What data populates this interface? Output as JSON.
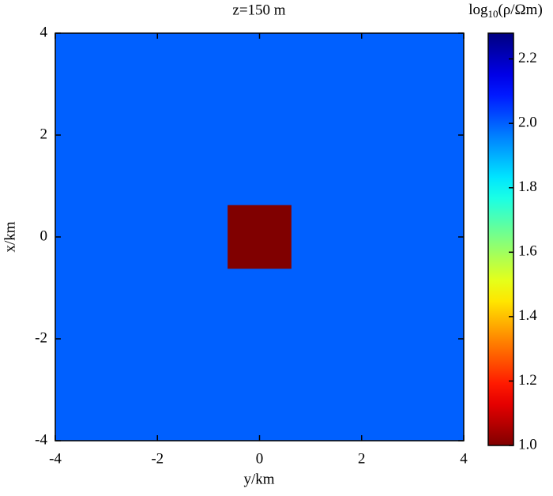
{
  "chart_data": {
    "type": "heatmap",
    "title": "z=150 m",
    "x_label": "y/km",
    "y_label": "x/km",
    "xlim": [
      -4,
      4
    ],
    "xticks": [
      -4,
      -2,
      0,
      2,
      4
    ],
    "ylim": [
      -4,
      4
    ],
    "yticks": [
      -4,
      -2,
      0,
      2,
      4
    ],
    "rects": [
      {
        "x0": -4,
        "x1": 4,
        "y0": -4,
        "y1": 4,
        "value": 2.0
      },
      {
        "x0": -0.625,
        "x1": 0.625,
        "y0": -0.625,
        "y1": 0.625,
        "value": 1.0
      }
    ],
    "colormap": "jet",
    "colormap_reversed": true,
    "colorbar": {
      "label": [
        "log",
        "10",
        "(ρ/Ωm)"
      ],
      "clim": [
        1.0,
        2.28
      ],
      "ticks": [
        {
          "value": 1.0,
          "label": "1.0"
        },
        {
          "value": 1.2,
          "label": "1.2"
        },
        {
          "value": 1.4,
          "label": "1.4"
        },
        {
          "value": 1.6,
          "label": "1.6"
        },
        {
          "value": 1.8,
          "label": "1.8"
        },
        {
          "value": 2.0,
          "label": "2.0"
        },
        {
          "value": 2.2,
          "label": "2.2"
        }
      ]
    }
  }
}
